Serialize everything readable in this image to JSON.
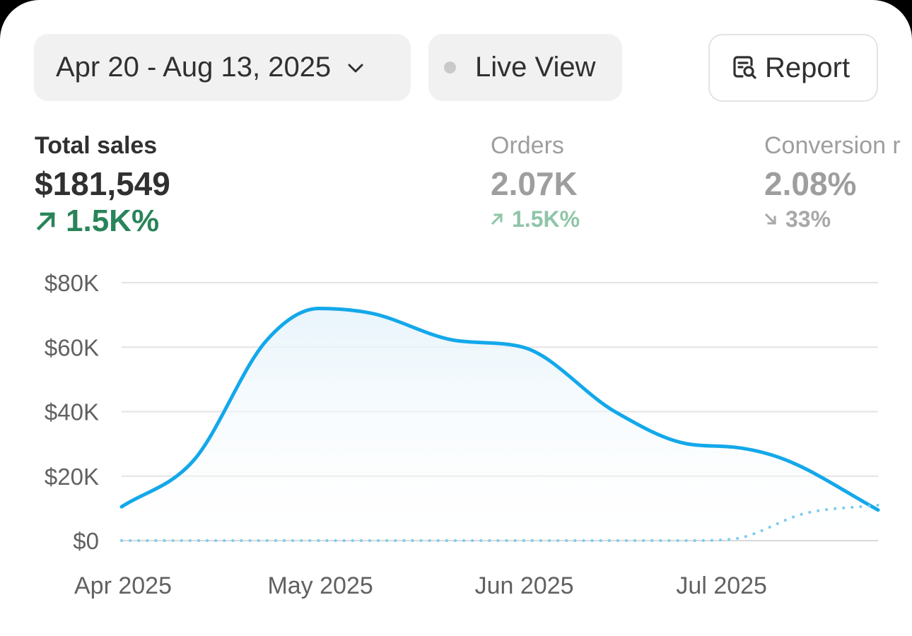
{
  "toolbar": {
    "date_range": "Apr 20 - Aug 13, 2025",
    "live_view": "Live View",
    "report": "Report"
  },
  "metrics": {
    "total_sales": {
      "label": "Total sales",
      "value": "$181,549",
      "change": "1.5K%",
      "direction": "up"
    },
    "orders": {
      "label": "Orders",
      "value": "2.07K",
      "change": "1.5K%",
      "direction": "up"
    },
    "conversion": {
      "label": "Conversion r",
      "value": "2.08%",
      "change": "33%",
      "direction": "down"
    }
  },
  "colors": {
    "series_primary": "#13a8ea",
    "series_comparison": "#7ccbef",
    "positive": "#29845a",
    "gridline": "#e3e3e3",
    "axis_text": "#616161"
  },
  "icons": {
    "date_dropdown": "chevron-down-icon",
    "live": "status-dot-icon",
    "report": "report-search-icon",
    "up": "arrow-up-right-icon",
    "down": "arrow-down-right-icon"
  },
  "chart_data": {
    "type": "area",
    "y_tick_labels": [
      "$0",
      "$20K",
      "$40K",
      "$60K",
      "$80K"
    ],
    "y_ticks": [
      0,
      20000,
      40000,
      60000,
      80000
    ],
    "ylim": [
      0,
      80000
    ],
    "x_tick_labels": [
      "Apr 2025",
      "May 2025",
      "Jun 2025",
      "Jul 2025"
    ],
    "x_ticks": [
      "2025-04-20",
      "2025-05-20",
      "2025-06-20",
      "2025-07-20"
    ],
    "x_range": [
      "2025-04-20",
      "2025-08-13"
    ],
    "grid": true,
    "series": [
      {
        "style": "solid-filled",
        "x": [
          "2025-04-20",
          "2025-05-01",
          "2025-05-12",
          "2025-05-20",
          "2025-05-28",
          "2025-06-10",
          "2025-06-20",
          "2025-07-04",
          "2025-07-15",
          "2025-07-22",
          "2025-07-30",
          "2025-08-13"
        ],
        "values": [
          10500,
          25000,
          62000,
          72000,
          70500,
          62000,
          60000,
          40000,
          30000,
          29000,
          25000,
          9500
        ]
      },
      {
        "style": "dotted",
        "x": [
          "2025-04-20",
          "2025-05-20",
          "2025-06-20",
          "2025-07-15",
          "2025-07-22",
          "2025-08-02",
          "2025-08-13"
        ],
        "values": [
          0,
          0,
          0,
          0,
          500,
          8500,
          11000
        ]
      }
    ]
  }
}
